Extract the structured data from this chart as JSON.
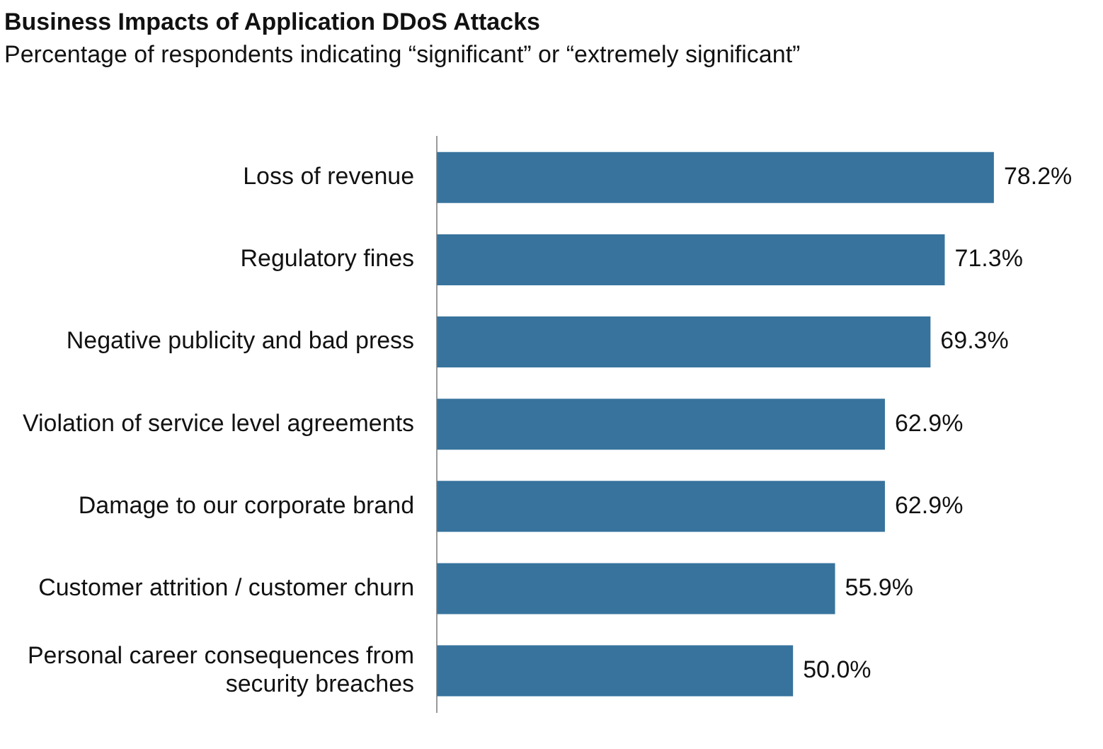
{
  "chart_data": {
    "type": "bar",
    "orientation": "horizontal",
    "title": "Business Impacts of Application DDoS Attacks",
    "subtitle": "Percentage of respondents indicating “significant” or “extremely significant”",
    "categories": [
      "Loss of revenue",
      "Regulatory fines",
      "Negative publicity and bad press",
      "Violation of service level agreements",
      "Damage to our corporate brand",
      "Customer attrition / customer churn",
      "Personal career consequences from security breaches"
    ],
    "values": [
      78.2,
      71.3,
      69.3,
      62.9,
      62.9,
      55.9,
      50.0
    ],
    "value_labels": [
      "78.2%",
      "71.3%",
      "69.3%",
      "62.9%",
      "62.9%",
      "55.9%",
      "50.0%"
    ],
    "color": "#37739d",
    "legend": false,
    "tick_labels": "y"
  }
}
